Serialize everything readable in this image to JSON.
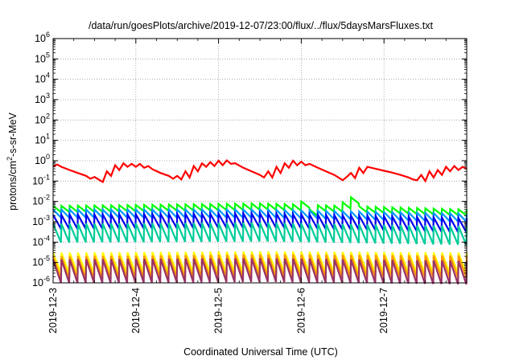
{
  "chart_data": {
    "type": "line",
    "title": "/data/run/goesPlots/archive/2019-12-07/23:00/flux/../flux/5daysMarsFluxes.txt",
    "xlabel": "Coordinated Universal Time (UTC)",
    "ylabel": "protons/cm²-s-sr-MeV",
    "ylabel_parts": {
      "pre": "protons/cm",
      "sup": "2",
      "post": "-s-sr-MeV"
    },
    "x_ticks": [
      "2019-12-3",
      "2019-12-4",
      "2019-12-5",
      "2019-12-6",
      "2019-12-7"
    ],
    "x_range_days": [
      0,
      5
    ],
    "y_scale": "log",
    "y_range": [
      1e-06,
      1000000.0
    ],
    "y_ticks": [
      {
        "base": "10",
        "exp": "-6"
      },
      {
        "base": "10",
        "exp": "-5"
      },
      {
        "base": "10",
        "exp": "-4"
      },
      {
        "base": "10",
        "exp": "-3"
      },
      {
        "base": "10",
        "exp": "-2"
      },
      {
        "base": "10",
        "exp": "-1"
      },
      {
        "base": "10",
        "exp": "0"
      },
      {
        "base": "10",
        "exp": "1"
      },
      {
        "base": "10",
        "exp": "2"
      },
      {
        "base": "10",
        "exp": "3"
      },
      {
        "base": "10",
        "exp": "4"
      },
      {
        "base": "10",
        "exp": "5"
      },
      {
        "base": "10",
        "exp": "6"
      }
    ],
    "grid": true,
    "legend": "none",
    "series": [
      {
        "color": "#ff0000",
        "points": [
          [
            0,
            0.52
          ],
          [
            0.05,
            0.65
          ],
          [
            0.1,
            0.5
          ],
          [
            0.2,
            0.35
          ],
          [
            0.3,
            0.25
          ],
          [
            0.4,
            0.18
          ],
          [
            0.45,
            0.13
          ],
          [
            0.5,
            0.16
          ],
          [
            0.55,
            0.12
          ],
          [
            0.6,
            0.09
          ],
          [
            0.65,
            0.3
          ],
          [
            0.7,
            0.18
          ],
          [
            0.75,
            0.6
          ],
          [
            0.8,
            0.35
          ],
          [
            0.85,
            0.75
          ],
          [
            0.9,
            0.5
          ],
          [
            0.95,
            0.7
          ],
          [
            1.0,
            0.5
          ],
          [
            1.05,
            0.7
          ],
          [
            1.1,
            0.45
          ],
          [
            1.15,
            0.55
          ],
          [
            1.2,
            0.38
          ],
          [
            1.3,
            0.25
          ],
          [
            1.4,
            0.18
          ],
          [
            1.45,
            0.13
          ],
          [
            1.5,
            0.18
          ],
          [
            1.55,
            0.12
          ],
          [
            1.6,
            0.3
          ],
          [
            1.65,
            0.15
          ],
          [
            1.7,
            0.55
          ],
          [
            1.75,
            0.3
          ],
          [
            1.8,
            0.75
          ],
          [
            1.85,
            0.5
          ],
          [
            1.9,
            0.85
          ],
          [
            1.95,
            0.55
          ],
          [
            2.0,
            1.0
          ],
          [
            2.05,
            0.6
          ],
          [
            2.1,
            1.05
          ],
          [
            2.15,
            0.7
          ],
          [
            2.2,
            0.75
          ],
          [
            2.3,
            0.45
          ],
          [
            2.4,
            0.3
          ],
          [
            2.5,
            0.2
          ],
          [
            2.55,
            0.15
          ],
          [
            2.6,
            0.3
          ],
          [
            2.65,
            0.15
          ],
          [
            2.7,
            0.5
          ],
          [
            2.75,
            0.25
          ],
          [
            2.8,
            0.75
          ],
          [
            2.85,
            0.45
          ],
          [
            2.9,
            1.0
          ],
          [
            2.95,
            0.6
          ],
          [
            3.0,
            0.9
          ],
          [
            3.05,
            0.6
          ],
          [
            3.1,
            0.7
          ],
          [
            3.2,
            0.45
          ],
          [
            3.3,
            0.3
          ],
          [
            3.4,
            0.2
          ],
          [
            3.45,
            0.15
          ],
          [
            3.5,
            0.11
          ],
          [
            3.55,
            0.16
          ],
          [
            3.6,
            0.25
          ],
          [
            3.65,
            0.14
          ],
          [
            3.7,
            0.45
          ],
          [
            3.75,
            0.25
          ],
          [
            3.8,
            0.5
          ],
          [
            3.9,
            0.4
          ],
          [
            4.0,
            0.32
          ],
          [
            4.1,
            0.26
          ],
          [
            4.2,
            0.2
          ],
          [
            4.3,
            0.15
          ],
          [
            4.35,
            0.12
          ],
          [
            4.4,
            0.11
          ],
          [
            4.45,
            0.2
          ],
          [
            4.5,
            0.1
          ],
          [
            4.55,
            0.3
          ],
          [
            4.6,
            0.15
          ],
          [
            4.65,
            0.35
          ],
          [
            4.7,
            0.2
          ],
          [
            4.75,
            0.5
          ],
          [
            4.8,
            0.3
          ],
          [
            4.85,
            0.55
          ],
          [
            4.9,
            0.35
          ],
          [
            4.95,
            0.5
          ],
          [
            5.0,
            0.4
          ]
        ]
      },
      {
        "color": "#00ff00",
        "sawtooth": {
          "peaks": [
            [
              0.0,
              0.006
            ],
            [
              2.5,
              0.008
            ],
            [
              5.0,
              0.004
            ]
          ],
          "drop": 0.5,
          "period": 0.1,
          "spikes": [
            [
              1.55,
              0.01
            ],
            [
              3.0,
              0.01
            ],
            [
              3.15,
              0.004
            ],
            [
              3.55,
              0.009
            ],
            [
              3.63,
              0.016
            ]
          ]
        }
      },
      {
        "color": "#0099ff",
        "sawtooth": {
          "peaks": [
            [
              0.0,
              0.004
            ],
            [
              2.5,
              0.004
            ],
            [
              5.0,
              0.0025
            ]
          ],
          "drop": 0.4,
          "period": 0.1,
          "spikes": []
        }
      },
      {
        "color": "#0000ee",
        "sawtooth": {
          "peaks": [
            [
              0.0,
              0.0022
            ],
            [
              2.5,
              0.0026
            ],
            [
              5.0,
              0.0015
            ]
          ],
          "drop": 0.2,
          "period": 0.1,
          "spikes": []
        }
      },
      {
        "color": "#00cc99",
        "sawtooth": {
          "peaks": [
            [
              0.0,
              0.0008
            ],
            [
              2.5,
              0.0009
            ],
            [
              5.0,
              0.0006
            ]
          ],
          "drop": 0.12,
          "period": 0.1,
          "spikes": []
        }
      },
      {
        "color": "#ffff00",
        "sawtooth": {
          "peaks": [
            [
              0.0,
              3e-05
            ],
            [
              2.5,
              3.5e-05
            ],
            [
              5.0,
              3e-05
            ]
          ],
          "drop": 0.1,
          "period": 0.1,
          "spikes": []
        }
      },
      {
        "color": "#ff9900",
        "sawtooth": {
          "peaks": [
            [
              0.0,
              2e-05
            ],
            [
              2.5,
              2.5e-05
            ],
            [
              5.0,
              2.2e-05
            ]
          ],
          "drop": 0.08,
          "period": 0.1,
          "spikes": []
        }
      },
      {
        "color": "#993366",
        "sawtooth": {
          "peaks": [
            [
              0.0,
              1.4e-05
            ],
            [
              2.5,
              1.6e-05
            ],
            [
              5.0,
              1.2e-05
            ]
          ],
          "drop": 0.07,
          "period": 0.1,
          "spikes": []
        }
      }
    ]
  }
}
